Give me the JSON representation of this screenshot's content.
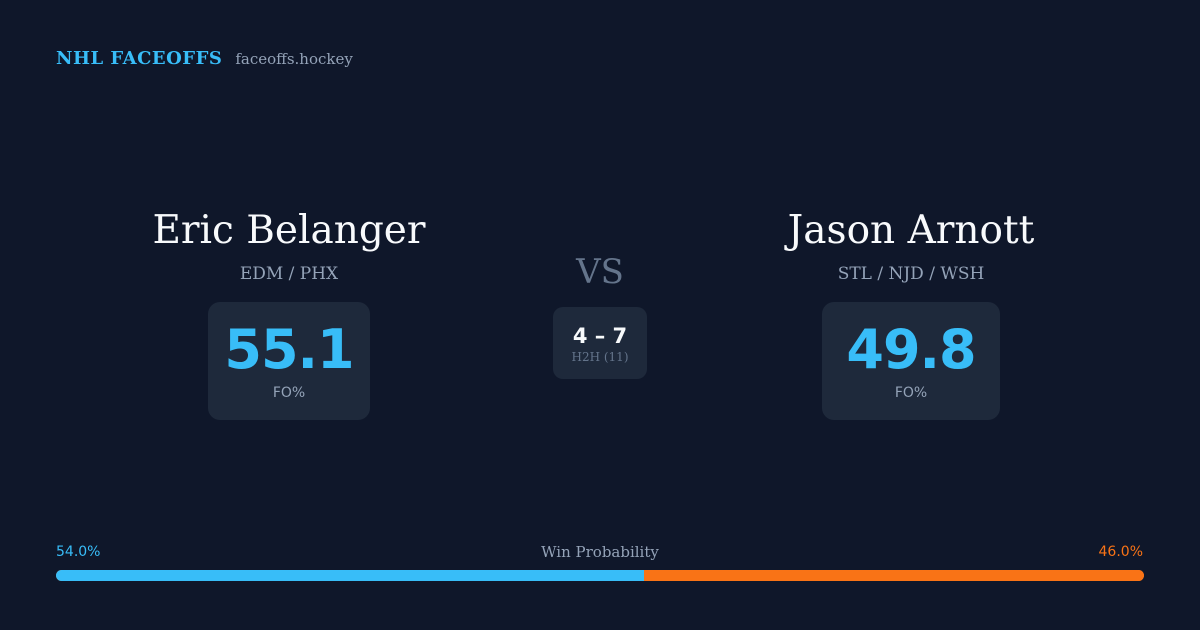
{
  "brand": {
    "name": "NHL FACEOFFS",
    "site": "faceoffs.hockey"
  },
  "players": [
    {
      "name": "Eric Belanger",
      "teams": "EDM / PHX",
      "fo_pct": "55.1",
      "fo_label": "FO%"
    },
    {
      "name": "Jason Arnott",
      "teams": "STL / NJD / WSH",
      "fo_pct": "49.8",
      "fo_label": "FO%"
    }
  ],
  "versus": {
    "label": "VS",
    "h2h_score": "4 – 7",
    "h2h_label": "H2H (11)"
  },
  "win_probability": {
    "title": "Win Probability",
    "left_label": "54.0%",
    "right_label": "46.0%",
    "left_fraction": 0.54,
    "right_fraction": 0.46
  },
  "colors": {
    "background": "#0f172a",
    "card": "#1e293b",
    "accent_blue": "#38bdf8",
    "accent_orange": "#f97316",
    "muted": "#94a3b8"
  }
}
